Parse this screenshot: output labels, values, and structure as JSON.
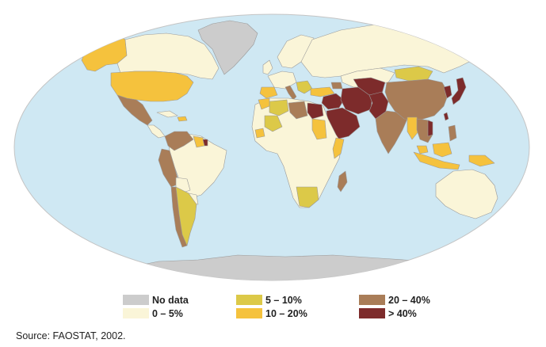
{
  "colors": {
    "ocean": "#cfe8f3",
    "no_data": "#cccccc",
    "c0_5": "#faf5d8",
    "c5_10": "#dcc948",
    "c10_20": "#f5c23d",
    "c20_40": "#a97d58",
    "c40": "#7d2b2b",
    "border": "#9a9a9a"
  },
  "legend": [
    {
      "label": "No data",
      "color_key": "no_data"
    },
    {
      "label": "0 – 5%",
      "color_key": "c0_5"
    },
    {
      "label": "5 – 10%",
      "color_key": "c5_10"
    },
    {
      "label": "10 – 20%",
      "color_key": "c10_20"
    },
    {
      "label": "20 – 40%",
      "color_key": "c20_40"
    },
    {
      "label": "> 40%",
      "color_key": "c40"
    }
  ],
  "source": "Source: FAOSTAT, 2002."
}
